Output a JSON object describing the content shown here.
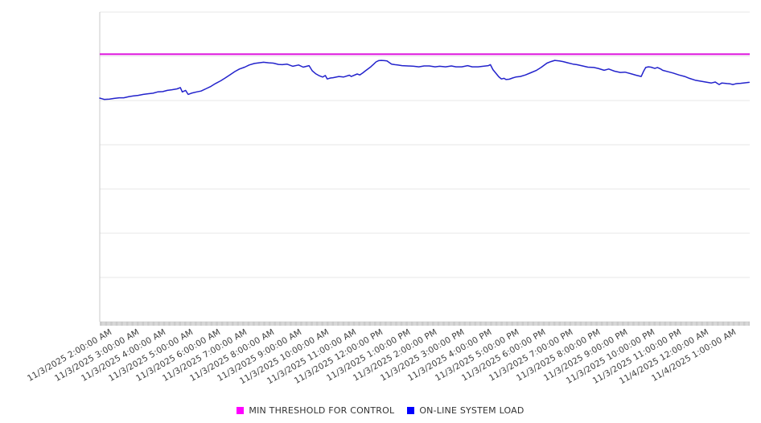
{
  "chart_data": {
    "type": "line",
    "title": "",
    "x_axis": {
      "tick_labels": [
        "11/3/2025 2:00:00 AM",
        "11/3/2025 3:00:00 AM",
        "11/3/2025 4:00:00 AM",
        "11/3/2025 5:00:00 AM",
        "11/3/2025 6:00:00 AM",
        "11/3/2025 7:00:00 AM",
        "11/3/2025 8:00:00 AM",
        "11/3/2025 9:00:00 AM",
        "11/3/2025 10:00:00 AM",
        "11/3/2025 11:00:00 AM",
        "11/3/2025 12:00:00 PM",
        "11/3/2025 1:00:00 PM",
        "11/3/2025 2:00:00 PM",
        "11/3/2025 3:00:00 PM",
        "11/3/2025 4:00:00 PM",
        "11/3/2025 5:00:00 PM",
        "11/3/2025 6:00:00 PM",
        "11/3/2025 7:00:00 PM",
        "11/3/2025 8:00:00 PM",
        "11/3/2025 9:00:00 PM",
        "11/3/2025 10:00:00 PM",
        "11/3/2025 11:00:00 PM",
        "11/4/2025 12:00:00 AM",
        "11/4/2025 1:00:00 AM"
      ],
      "label_rotation_deg": -30
    },
    "y_axis": {
      "tick_labels_visible": false,
      "gridline_count": 8,
      "range_normalized": [
        0,
        1
      ]
    },
    "grid": "horizontal-only",
    "legend_position": "bottom-center",
    "series": [
      {
        "name": "MIN THRESHOLD FOR CONTROL",
        "type": "threshold-line",
        "color": "#dd12dd",
        "value_normalized": 0.864
      },
      {
        "name": "ON-LINE SYSTEM LOAD",
        "type": "line",
        "color": "#2323cc",
        "points_normalized": [
          [
            0.0,
            0.722
          ],
          [
            0.007,
            0.718
          ],
          [
            0.015,
            0.719
          ],
          [
            0.022,
            0.721
          ],
          [
            0.03,
            0.723
          ],
          [
            0.037,
            0.723
          ],
          [
            0.045,
            0.727
          ],
          [
            0.052,
            0.729
          ],
          [
            0.059,
            0.731
          ],
          [
            0.067,
            0.734
          ],
          [
            0.074,
            0.736
          ],
          [
            0.082,
            0.738
          ],
          [
            0.089,
            0.742
          ],
          [
            0.097,
            0.743
          ],
          [
            0.104,
            0.747
          ],
          [
            0.111,
            0.749
          ],
          [
            0.119,
            0.752
          ],
          [
            0.124,
            0.756
          ],
          [
            0.127,
            0.742
          ],
          [
            0.132,
            0.747
          ],
          [
            0.136,
            0.734
          ],
          [
            0.141,
            0.738
          ],
          [
            0.149,
            0.742
          ],
          [
            0.156,
            0.745
          ],
          [
            0.163,
            0.752
          ],
          [
            0.171,
            0.76
          ],
          [
            0.178,
            0.769
          ],
          [
            0.186,
            0.778
          ],
          [
            0.193,
            0.787
          ],
          [
            0.2,
            0.797
          ],
          [
            0.208,
            0.808
          ],
          [
            0.215,
            0.816
          ],
          [
            0.223,
            0.822
          ],
          [
            0.23,
            0.829
          ],
          [
            0.238,
            0.834
          ],
          [
            0.245,
            0.836
          ],
          [
            0.252,
            0.838
          ],
          [
            0.26,
            0.836
          ],
          [
            0.267,
            0.835
          ],
          [
            0.275,
            0.831
          ],
          [
            0.281,
            0.83
          ],
          [
            0.288,
            0.832
          ],
          [
            0.297,
            0.825
          ],
          [
            0.306,
            0.829
          ],
          [
            0.313,
            0.822
          ],
          [
            0.322,
            0.827
          ],
          [
            0.327,
            0.81
          ],
          [
            0.332,
            0.801
          ],
          [
            0.337,
            0.795
          ],
          [
            0.343,
            0.79
          ],
          [
            0.347,
            0.795
          ],
          [
            0.35,
            0.784
          ],
          [
            0.355,
            0.787
          ],
          [
            0.359,
            0.788
          ],
          [
            0.368,
            0.792
          ],
          [
            0.375,
            0.79
          ],
          [
            0.384,
            0.796
          ],
          [
            0.387,
            0.792
          ],
          [
            0.396,
            0.8
          ],
          [
            0.4,
            0.797
          ],
          [
            0.405,
            0.804
          ],
          [
            0.408,
            0.809
          ],
          [
            0.413,
            0.817
          ],
          [
            0.417,
            0.823
          ],
          [
            0.421,
            0.831
          ],
          [
            0.425,
            0.839
          ],
          [
            0.429,
            0.843
          ],
          [
            0.433,
            0.844
          ],
          [
            0.438,
            0.843
          ],
          [
            0.442,
            0.842
          ],
          [
            0.446,
            0.836
          ],
          [
            0.449,
            0.832
          ],
          [
            0.454,
            0.83
          ],
          [
            0.458,
            0.829
          ],
          [
            0.465,
            0.827
          ],
          [
            0.474,
            0.826
          ],
          [
            0.483,
            0.825
          ],
          [
            0.491,
            0.823
          ],
          [
            0.499,
            0.826
          ],
          [
            0.507,
            0.826
          ],
          [
            0.516,
            0.823
          ],
          [
            0.523,
            0.825
          ],
          [
            0.532,
            0.823
          ],
          [
            0.541,
            0.826
          ],
          [
            0.548,
            0.823
          ],
          [
            0.557,
            0.823
          ],
          [
            0.566,
            0.827
          ],
          [
            0.573,
            0.823
          ],
          [
            0.582,
            0.823
          ],
          [
            0.59,
            0.825
          ],
          [
            0.598,
            0.827
          ],
          [
            0.601,
            0.83
          ],
          [
            0.605,
            0.814
          ],
          [
            0.61,
            0.801
          ],
          [
            0.614,
            0.791
          ],
          [
            0.618,
            0.784
          ],
          [
            0.622,
            0.786
          ],
          [
            0.625,
            0.782
          ],
          [
            0.63,
            0.783
          ],
          [
            0.635,
            0.787
          ],
          [
            0.64,
            0.79
          ],
          [
            0.647,
            0.792
          ],
          [
            0.655,
            0.797
          ],
          [
            0.663,
            0.804
          ],
          [
            0.672,
            0.812
          ],
          [
            0.679,
            0.821
          ],
          [
            0.688,
            0.835
          ],
          [
            0.694,
            0.84
          ],
          [
            0.7,
            0.844
          ],
          [
            0.707,
            0.842
          ],
          [
            0.713,
            0.84
          ],
          [
            0.72,
            0.836
          ],
          [
            0.728,
            0.832
          ],
          [
            0.734,
            0.83
          ],
          [
            0.743,
            0.826
          ],
          [
            0.751,
            0.822
          ],
          [
            0.76,
            0.821
          ],
          [
            0.767,
            0.818
          ],
          [
            0.776,
            0.812
          ],
          [
            0.783,
            0.816
          ],
          [
            0.792,
            0.809
          ],
          [
            0.801,
            0.805
          ],
          [
            0.808,
            0.806
          ],
          [
            0.817,
            0.801
          ],
          [
            0.825,
            0.796
          ],
          [
            0.833,
            0.792
          ],
          [
            0.837,
            0.81
          ],
          [
            0.84,
            0.821
          ],
          [
            0.844,
            0.823
          ],
          [
            0.848,
            0.822
          ],
          [
            0.854,
            0.818
          ],
          [
            0.858,
            0.821
          ],
          [
            0.863,
            0.816
          ],
          [
            0.866,
            0.812
          ],
          [
            0.875,
            0.807
          ],
          [
            0.882,
            0.803
          ],
          [
            0.891,
            0.797
          ],
          [
            0.9,
            0.792
          ],
          [
            0.907,
            0.786
          ],
          [
            0.916,
            0.78
          ],
          [
            0.924,
            0.777
          ],
          [
            0.932,
            0.774
          ],
          [
            0.941,
            0.771
          ],
          [
            0.947,
            0.774
          ],
          [
            0.95,
            0.77
          ],
          [
            0.953,
            0.766
          ],
          [
            0.957,
            0.771
          ],
          [
            0.962,
            0.77
          ],
          [
            0.965,
            0.769
          ],
          [
            0.97,
            0.768
          ],
          [
            0.974,
            0.766
          ],
          [
            0.978,
            0.768
          ],
          [
            0.981,
            0.769
          ],
          [
            0.986,
            0.77
          ],
          [
            0.99,
            0.771
          ],
          [
            0.995,
            0.772
          ],
          [
            0.999,
            0.773
          ]
        ]
      }
    ],
    "legend": {
      "items": [
        {
          "label": "MIN THRESHOLD FOR CONTROL",
          "color": "#ff00ff"
        },
        {
          "label": "ON-LINE SYSTEM LOAD",
          "color": "#0000ff"
        }
      ]
    }
  },
  "colors": {
    "gridline": "#e7e7e7",
    "axis_line": "#c9c9c9",
    "minor_ticks": "#b5b5b5",
    "axis_label_text": "#3c3c3c",
    "legend_text": "#333333",
    "background": "#ffffff"
  }
}
